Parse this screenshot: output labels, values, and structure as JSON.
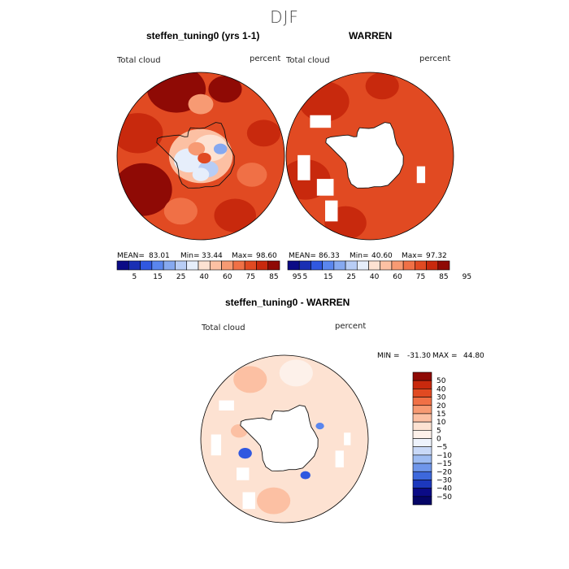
{
  "figure": {
    "season": "DJF"
  },
  "colors": {
    "coast": "#111111",
    "land": "#ffffff"
  },
  "chart_data": [
    {
      "type": "heatmap",
      "projection": "south-polar-stereographic",
      "title": "steffen_tuning0 (yrs 1-1)",
      "variable_label": "Total cloud",
      "units_label": "percent",
      "stats": {
        "mean_label": "MEAN=",
        "mean": "83.01",
        "min_label": "Min=",
        "min": "33.44",
        "max_label": "Max=",
        "max": "98.60"
      },
      "colorbar": {
        "orientation": "horizontal",
        "tick_labels": [
          "5",
          "15",
          "25",
          "40",
          "60",
          "75",
          "85",
          "95"
        ],
        "colors": [
          "#0b0b86",
          "#1a2fb4",
          "#3058e0",
          "#5a86ee",
          "#86a9f0",
          "#b8cdf5",
          "#e6eefb",
          "#fde2d2",
          "#fcc0a3",
          "#f79a73",
          "#f07046",
          "#e14a22",
          "#c8290d",
          "#8f0a05"
        ]
      }
    },
    {
      "type": "heatmap",
      "projection": "south-polar-stereographic",
      "title": "WARREN",
      "variable_label": "Total cloud",
      "units_label": "percent",
      "stats": {
        "mean_label": "MEAN=",
        "mean": "86.33",
        "min_label": "Min=",
        "min": "40.60",
        "max_label": "Max=",
        "max": "97.32"
      },
      "colorbar": {
        "orientation": "horizontal",
        "tick_labels": [
          "5",
          "15",
          "25",
          "40",
          "60",
          "75",
          "85",
          "95"
        ],
        "colors": [
          "#0b0b86",
          "#1a2fb4",
          "#3058e0",
          "#5a86ee",
          "#86a9f0",
          "#b8cdf5",
          "#e6eefb",
          "#fde2d2",
          "#fcc0a3",
          "#f79a73",
          "#f07046",
          "#e14a22",
          "#c8290d",
          "#8f0a05"
        ]
      }
    },
    {
      "type": "heatmap",
      "projection": "south-polar-stereographic",
      "title": "steffen_tuning0 - WARREN",
      "variable_label": "Total cloud",
      "units_label": "percent",
      "stats": {
        "min_label": "MIN =",
        "min": "-31.30",
        "max_label": "MAX =",
        "max": "44.80"
      },
      "colorbar": {
        "orientation": "vertical",
        "tick_labels": [
          "50",
          "40",
          "30",
          "20",
          "15",
          "10",
          "5",
          "0",
          "−5",
          "−10",
          "−15",
          "−20",
          "−30",
          "−40",
          "−50"
        ],
        "colors": [
          "#8f0a05",
          "#c8290d",
          "#e14a22",
          "#f07046",
          "#f79a73",
          "#fcc0a3",
          "#fde2d2",
          "#fdf1ea",
          "#eef3fc",
          "#c9d9f7",
          "#9ebcf2",
          "#6f96ea",
          "#3d68dc",
          "#1c38bd",
          "#0b0b86",
          "#050566"
        ]
      }
    }
  ]
}
